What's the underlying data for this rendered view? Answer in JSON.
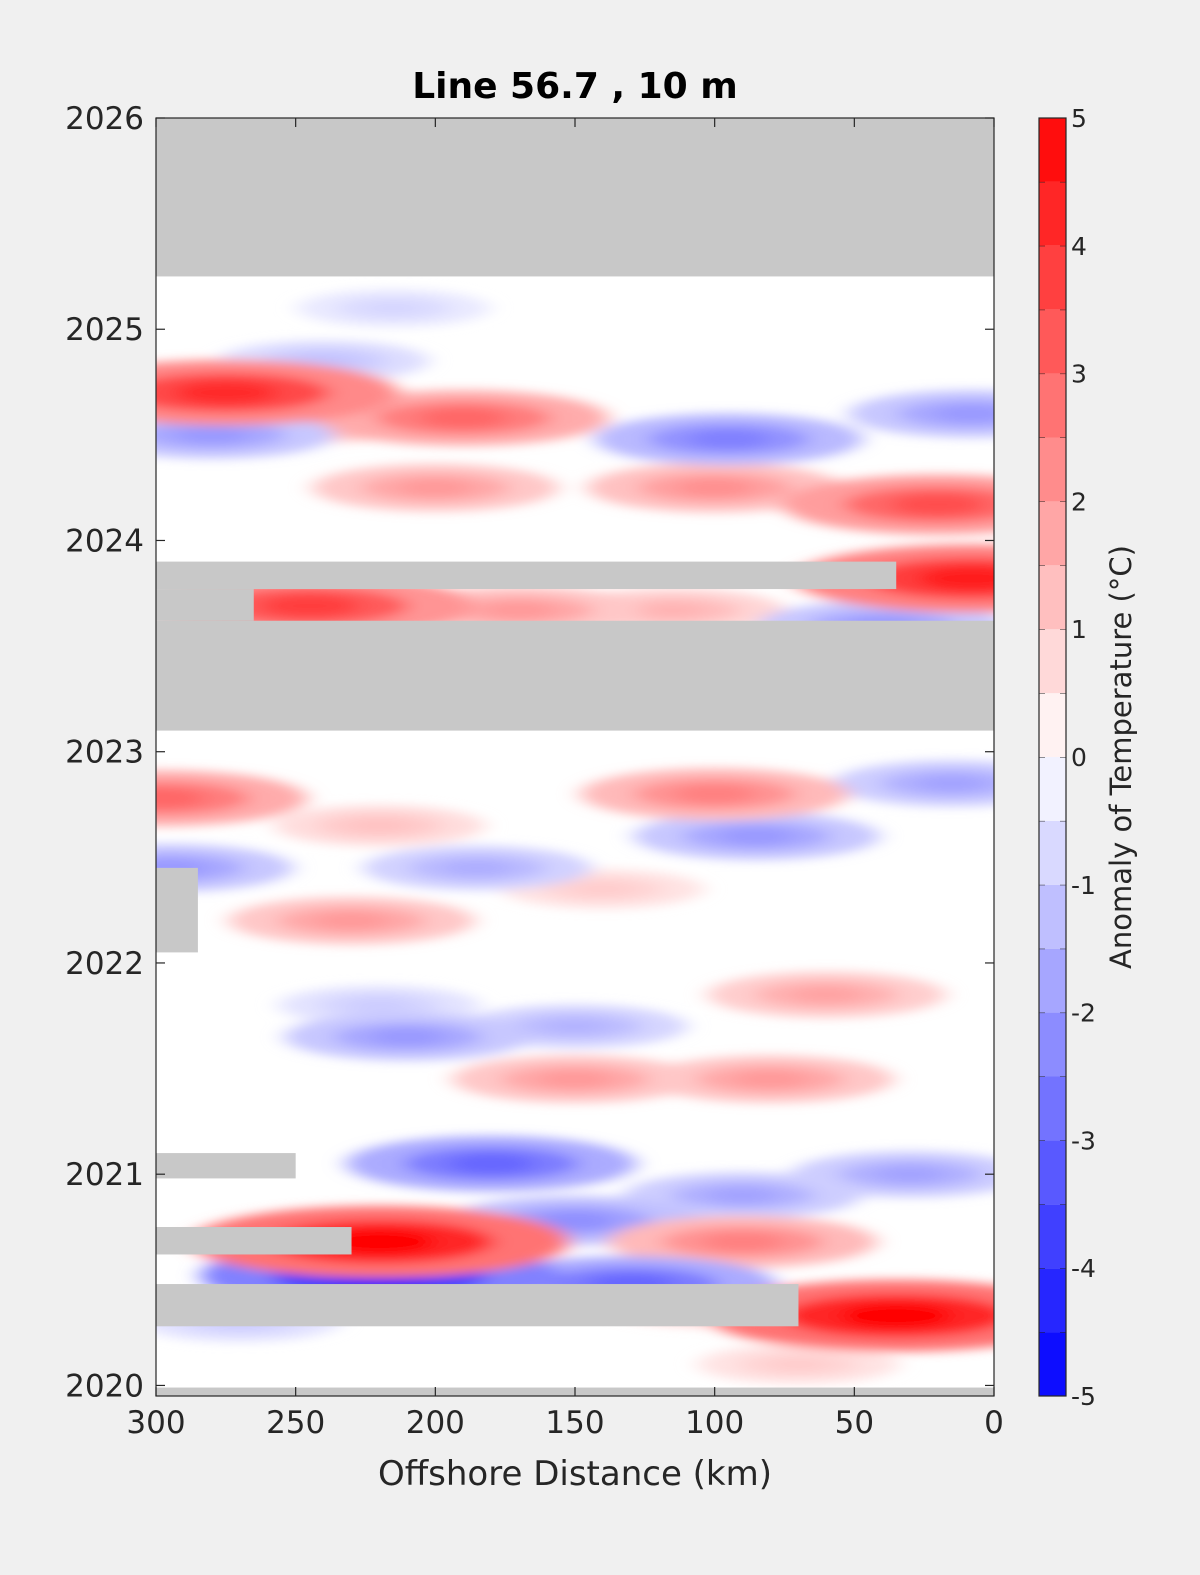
{
  "chart_data": {
    "type": "heatmap",
    "title": "Line 56.7 , 10 m",
    "xlabel": "Offshore Distance (km)",
    "ylabel": "",
    "x_reversed": true,
    "xlim": [
      300,
      0
    ],
    "ylim": [
      2019.95,
      2026
    ],
    "xticks": [
      300,
      250,
      200,
      150,
      100,
      50,
      0
    ],
    "yticks": [
      2020,
      2021,
      2022,
      2023,
      2024,
      2025,
      2026
    ],
    "colorbar": {
      "label": "Anomaly of Temperature (°C)",
      "range": [
        -5,
        5
      ],
      "step": 0.5,
      "ticks": [
        5,
        4,
        3,
        2,
        1,
        0,
        -1,
        -2,
        -3,
        -4,
        -5
      ]
    },
    "colors": {
      "missing": "#c8c8c8",
      "warm": "#ff0000",
      "cold": "#0000ff",
      "neutral": "#ffffff"
    },
    "missing_data": [
      {
        "x0": 300,
        "x1": 0,
        "y0": 2025.25,
        "y1": 2026
      },
      {
        "x0": 300,
        "x1": 0,
        "y0": 2023.1,
        "y1": 2023.62
      },
      {
        "x0": 300,
        "x1": 35,
        "y0": 2023.77,
        "y1": 2023.9
      },
      {
        "x0": 300,
        "x1": 265,
        "y0": 2023.62,
        "y1": 2023.77
      },
      {
        "x0": 300,
        "x1": 285,
        "y0": 2022.05,
        "y1": 2022.45
      },
      {
        "x0": 300,
        "x1": 250,
        "y0": 2020.98,
        "y1": 2021.1
      },
      {
        "x0": 300,
        "x1": 230,
        "y0": 2020.62,
        "y1": 2020.75
      },
      {
        "x0": 300,
        "x1": 70,
        "y0": 2020.28,
        "y1": 2020.48
      },
      {
        "x0": 300,
        "x1": 0,
        "y0": 2019.95,
        "y1": 2019.99
      }
    ],
    "anomalies": [
      {
        "x": 275,
        "y": 2024.7,
        "value": 4.2
      },
      {
        "x": 190,
        "y": 2024.58,
        "value": 3.0
      },
      {
        "x": 240,
        "y": 2024.58,
        "value": 2.0
      },
      {
        "x": 280,
        "y": 2024.5,
        "value": -2.0
      },
      {
        "x": 95,
        "y": 2024.48,
        "value": -2.5
      },
      {
        "x": 8,
        "y": 2024.6,
        "value": -2.0
      },
      {
        "x": 240,
        "y": 2024.85,
        "value": -1.2
      },
      {
        "x": 215,
        "y": 2025.1,
        "value": -0.8
      },
      {
        "x": 100,
        "y": 2024.25,
        "value": 2.2
      },
      {
        "x": 200,
        "y": 2024.25,
        "value": 2.0
      },
      {
        "x": 20,
        "y": 2024.17,
        "value": 3.5
      },
      {
        "x": 8,
        "y": 2023.82,
        "value": 4.5
      },
      {
        "x": 245,
        "y": 2023.69,
        "value": 3.8
      },
      {
        "x": 170,
        "y": 2023.67,
        "value": 2.0
      },
      {
        "x": 115,
        "y": 2023.67,
        "value": 1.5
      },
      {
        "x": 40,
        "y": 2023.6,
        "value": -2.0
      },
      {
        "x": 298,
        "y": 2022.78,
        "value": 3.0
      },
      {
        "x": 100,
        "y": 2022.8,
        "value": 2.5
      },
      {
        "x": 220,
        "y": 2022.65,
        "value": 1.2
      },
      {
        "x": 85,
        "y": 2022.6,
        "value": -2.0
      },
      {
        "x": 15,
        "y": 2022.85,
        "value": -1.8
      },
      {
        "x": 295,
        "y": 2022.45,
        "value": -2.0
      },
      {
        "x": 185,
        "y": 2022.45,
        "value": -1.6
      },
      {
        "x": 230,
        "y": 2022.2,
        "value": 2.0
      },
      {
        "x": 140,
        "y": 2022.35,
        "value": 1.0
      },
      {
        "x": 60,
        "y": 2021.85,
        "value": 1.8
      },
      {
        "x": 150,
        "y": 2021.7,
        "value": -1.5
      },
      {
        "x": 210,
        "y": 2021.65,
        "value": -2.0
      },
      {
        "x": 220,
        "y": 2021.8,
        "value": -1.0
      },
      {
        "x": 150,
        "y": 2021.45,
        "value": 2.0
      },
      {
        "x": 80,
        "y": 2021.45,
        "value": 2.0
      },
      {
        "x": 180,
        "y": 2021.05,
        "value": -3.0
      },
      {
        "x": 90,
        "y": 2020.9,
        "value": -1.8
      },
      {
        "x": 30,
        "y": 2021.0,
        "value": -1.8
      },
      {
        "x": 150,
        "y": 2020.78,
        "value": -2.2
      },
      {
        "x": 220,
        "y": 2020.68,
        "value": 5.0
      },
      {
        "x": 90,
        "y": 2020.68,
        "value": 2.5
      },
      {
        "x": 220,
        "y": 2020.52,
        "value": -4.5
      },
      {
        "x": 130,
        "y": 2020.48,
        "value": -3.0
      },
      {
        "x": 35,
        "y": 2020.33,
        "value": 5.0
      },
      {
        "x": 100,
        "y": 2020.38,
        "value": 1.5
      },
      {
        "x": 270,
        "y": 2020.3,
        "value": -1.0
      },
      {
        "x": 70,
        "y": 2020.1,
        "value": 1.0
      }
    ]
  }
}
